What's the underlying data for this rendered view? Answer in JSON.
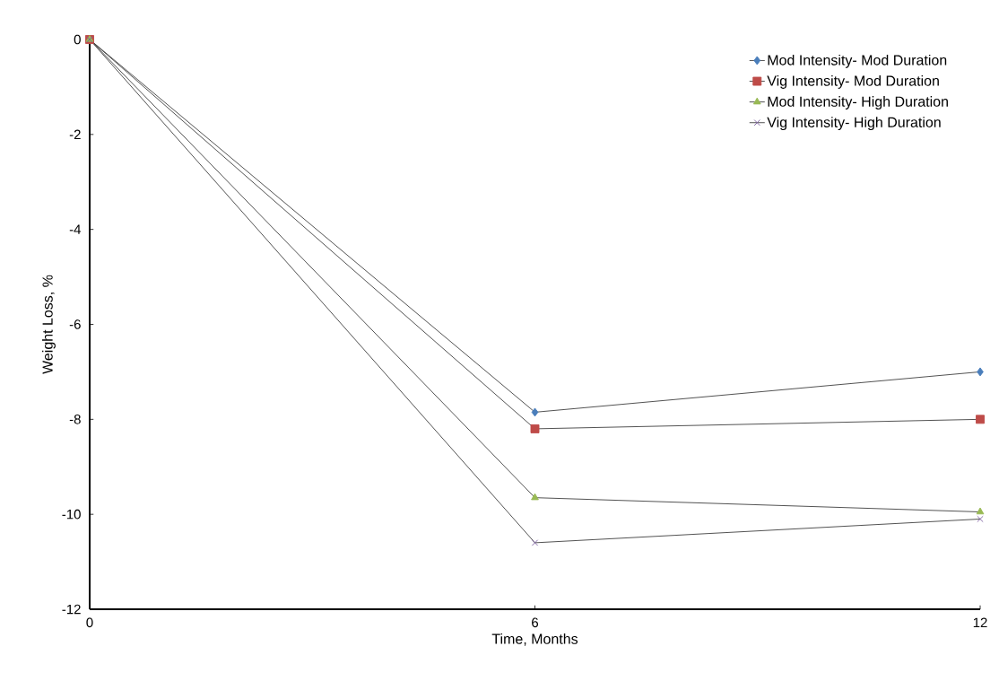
{
  "chart_data": {
    "type": "line",
    "xlabel": "Time, Months",
    "ylabel": "Weight Loss, %",
    "x": [
      0,
      6,
      12
    ],
    "series": [
      {
        "name": "Mod Intensity- Mod Duration",
        "color": "#4a7ebb",
        "marker": "diamond",
        "values": [
          0,
          -7.85,
          -7.0
        ]
      },
      {
        "name": "Vig Intensity- Mod Duration",
        "color": "#be4b48",
        "marker": "square",
        "values": [
          0,
          -8.2,
          -8.0
        ]
      },
      {
        "name": "Mod Intensity- High Duration",
        "color": "#98b954",
        "marker": "triangle",
        "values": [
          0,
          -9.65,
          -9.95
        ]
      },
      {
        "name": "Vig Intensity- High Duration",
        "color": "#7d60a0",
        "marker": "cross",
        "values": [
          0,
          -10.6,
          -10.1
        ]
      }
    ],
    "xlim": [
      0,
      12
    ],
    "ylim": [
      -12,
      0
    ],
    "xticks": [
      0,
      6,
      12
    ],
    "yticks": [
      -12,
      -10,
      -8,
      -6,
      -4,
      -2,
      0
    ],
    "grid": false,
    "legend": "top right",
    "line_style": "solid"
  }
}
